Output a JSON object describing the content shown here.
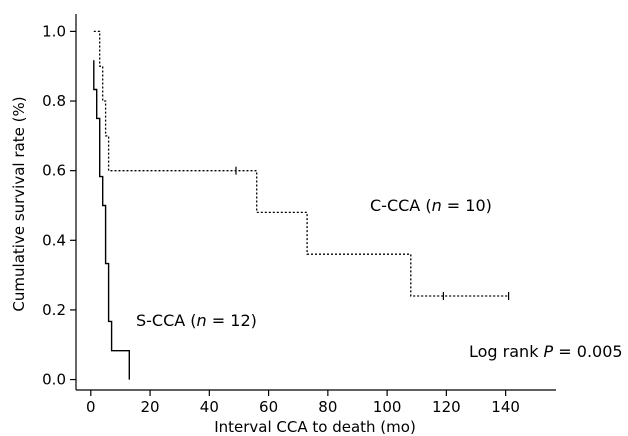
{
  "chart_data": {
    "type": "line",
    "subtype": "kaplan-meier step plot",
    "title": "",
    "xlabel": "Interval CCA to death (mo)",
    "ylabel": "Cumulative survival rate (%)",
    "xlim": [
      -5,
      157
    ],
    "ylim": [
      -0.03,
      1.05
    ],
    "x_ticks": [
      0,
      20,
      40,
      60,
      80,
      100,
      120,
      140
    ],
    "y_ticks": [
      0.0,
      0.2,
      0.4,
      0.6,
      0.8,
      1.0
    ],
    "y_tick_labels": [
      "0.0",
      "0.2",
      "0.4",
      "0.6",
      "0.8",
      "1.0"
    ],
    "grid": false,
    "series": [
      {
        "name": "C-CCA",
        "line_style": "dotted",
        "x": [
          1,
          3,
          3,
          4,
          4,
          5,
          5,
          6,
          6,
          56,
          56,
          73,
          73,
          108,
          108,
          141
        ],
        "y": [
          1.0,
          1.0,
          0.9,
          0.9,
          0.8,
          0.8,
          0.7,
          0.7,
          0.6,
          0.6,
          0.48,
          0.48,
          0.36,
          0.36,
          0.24,
          0.24
        ],
        "censored_x": [
          49,
          119,
          141
        ],
        "censored_y": [
          0.6,
          0.24,
          0.24
        ]
      },
      {
        "name": "S-CCA",
        "line_style": "solid",
        "x": [
          1,
          1,
          2,
          2,
          3,
          3,
          4,
          4,
          5,
          5,
          6,
          6,
          7,
          7,
          13,
          13
        ],
        "y": [
          0.917,
          0.833,
          0.833,
          0.75,
          0.75,
          0.583,
          0.583,
          0.5,
          0.5,
          0.333,
          0.333,
          0.167,
          0.167,
          0.083,
          0.083,
          0.0
        ]
      }
    ],
    "annotations": {
      "c_cca_prefix": "C-CCA (",
      "c_cca_n": "n",
      "c_cca_suffix": " = 10)",
      "s_cca_prefix": "S-CCA (",
      "s_cca_n": "n",
      "s_cca_suffix": " = 12)",
      "logrank_prefix": "Log rank ",
      "logrank_p": "P",
      "logrank_suffix": " = 0.005"
    }
  }
}
